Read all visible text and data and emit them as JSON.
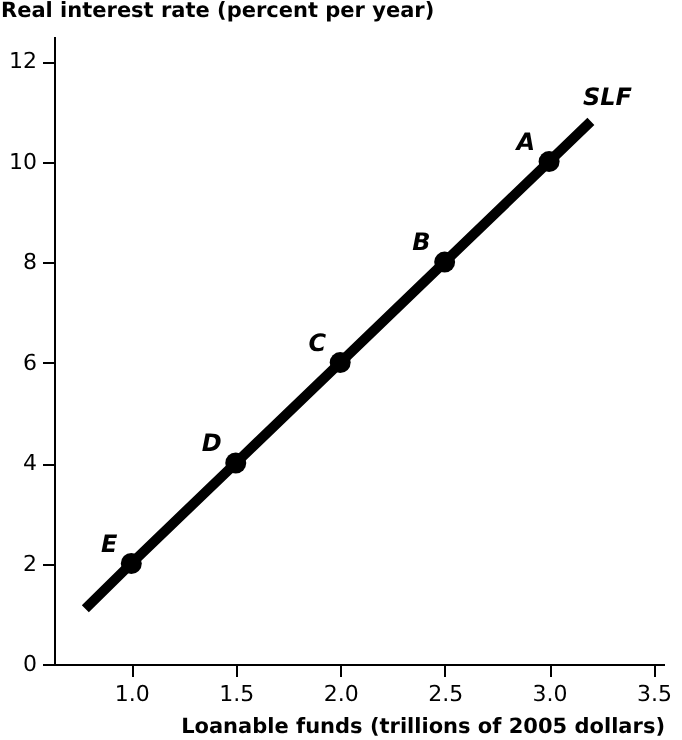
{
  "chart_data": {
    "type": "line",
    "xlabel": "Loanable funds (trillions of 2005 dollars)",
    "ylabel": "Real interest rate (percent per year)",
    "xlim": [
      0.63,
      3.55
    ],
    "xticks": [
      {
        "value": 1.0,
        "label": "1.0"
      },
      {
        "value": 1.5,
        "label": "1.5"
      },
      {
        "value": 2.0,
        "label": "2.0"
      },
      {
        "value": 2.5,
        "label": "2.5"
      },
      {
        "value": 3.0,
        "label": "3.0"
      },
      {
        "value": 3.5,
        "label": "3.5"
      }
    ],
    "ylim": [
      0,
      12.5
    ],
    "yticks": [
      0,
      2,
      4,
      6,
      8,
      10,
      12
    ],
    "grid": false,
    "line_style": "solid",
    "series": [
      {
        "name": "SLF",
        "color": "#000000",
        "x": [
          0.78,
          1,
          1.5,
          2,
          2.5,
          3,
          3.2
        ],
        "values": [
          1.1,
          2,
          4,
          6,
          8,
          10,
          10.8
        ]
      },
      {
        "type": "scatter",
        "marker": "circle",
        "color": "#000000",
        "x": [
          1,
          1.5,
          2,
          2.5,
          3
        ],
        "values": [
          2,
          4,
          6,
          8,
          10
        ]
      }
    ],
    "annotations": [
      {
        "text": "A",
        "x": 3,
        "y": 10
      },
      {
        "text": "B",
        "x": 2.5,
        "y": 8
      },
      {
        "text": "C",
        "x": 2,
        "y": 6
      },
      {
        "text": "D",
        "x": 1.5,
        "y": 4
      },
      {
        "text": "E",
        "x": 1,
        "y": 2
      }
    ]
  }
}
